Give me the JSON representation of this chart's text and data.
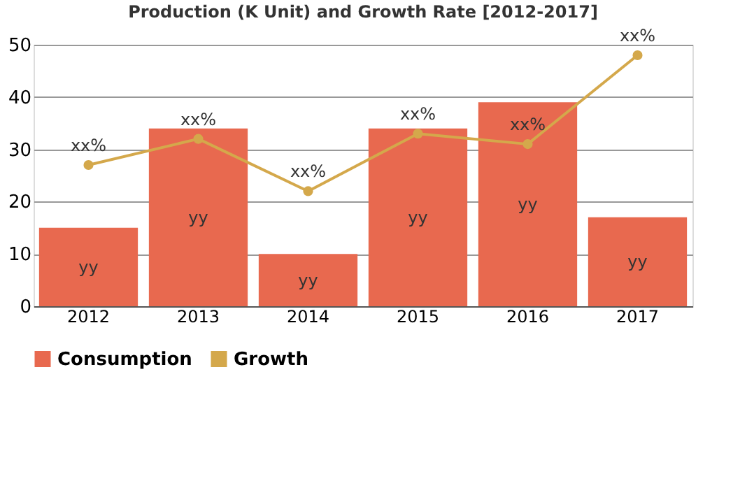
{
  "chart_data": {
    "type": "bar",
    "title": "Production (K Unit) and Growth Rate [2012-2017]",
    "categories": [
      "2012",
      "2013",
      "2014",
      "2015",
      "2016",
      "2017"
    ],
    "series": [
      {
        "name": "Consumption",
        "color": "#e8694f",
        "values": [
          15,
          34,
          10,
          34,
          39,
          17
        ],
        "value_labels": [
          "yy",
          "yy",
          "yy",
          "yy",
          "yy",
          "yy"
        ]
      },
      {
        "name": "Growth",
        "type": "line",
        "color": "#d4a84b",
        "values": [
          27,
          32,
          22,
          33,
          31,
          48
        ],
        "value_labels": [
          "xx%",
          "xx%",
          "xx%",
          "xx%",
          "xx%",
          "xx%"
        ],
        "marker": "circle",
        "line_style": "solid"
      }
    ],
    "ylim": [
      0,
      50
    ],
    "yticks": [
      0,
      10,
      20,
      30,
      40,
      50
    ],
    "grid": "y",
    "legend": "bottom"
  }
}
